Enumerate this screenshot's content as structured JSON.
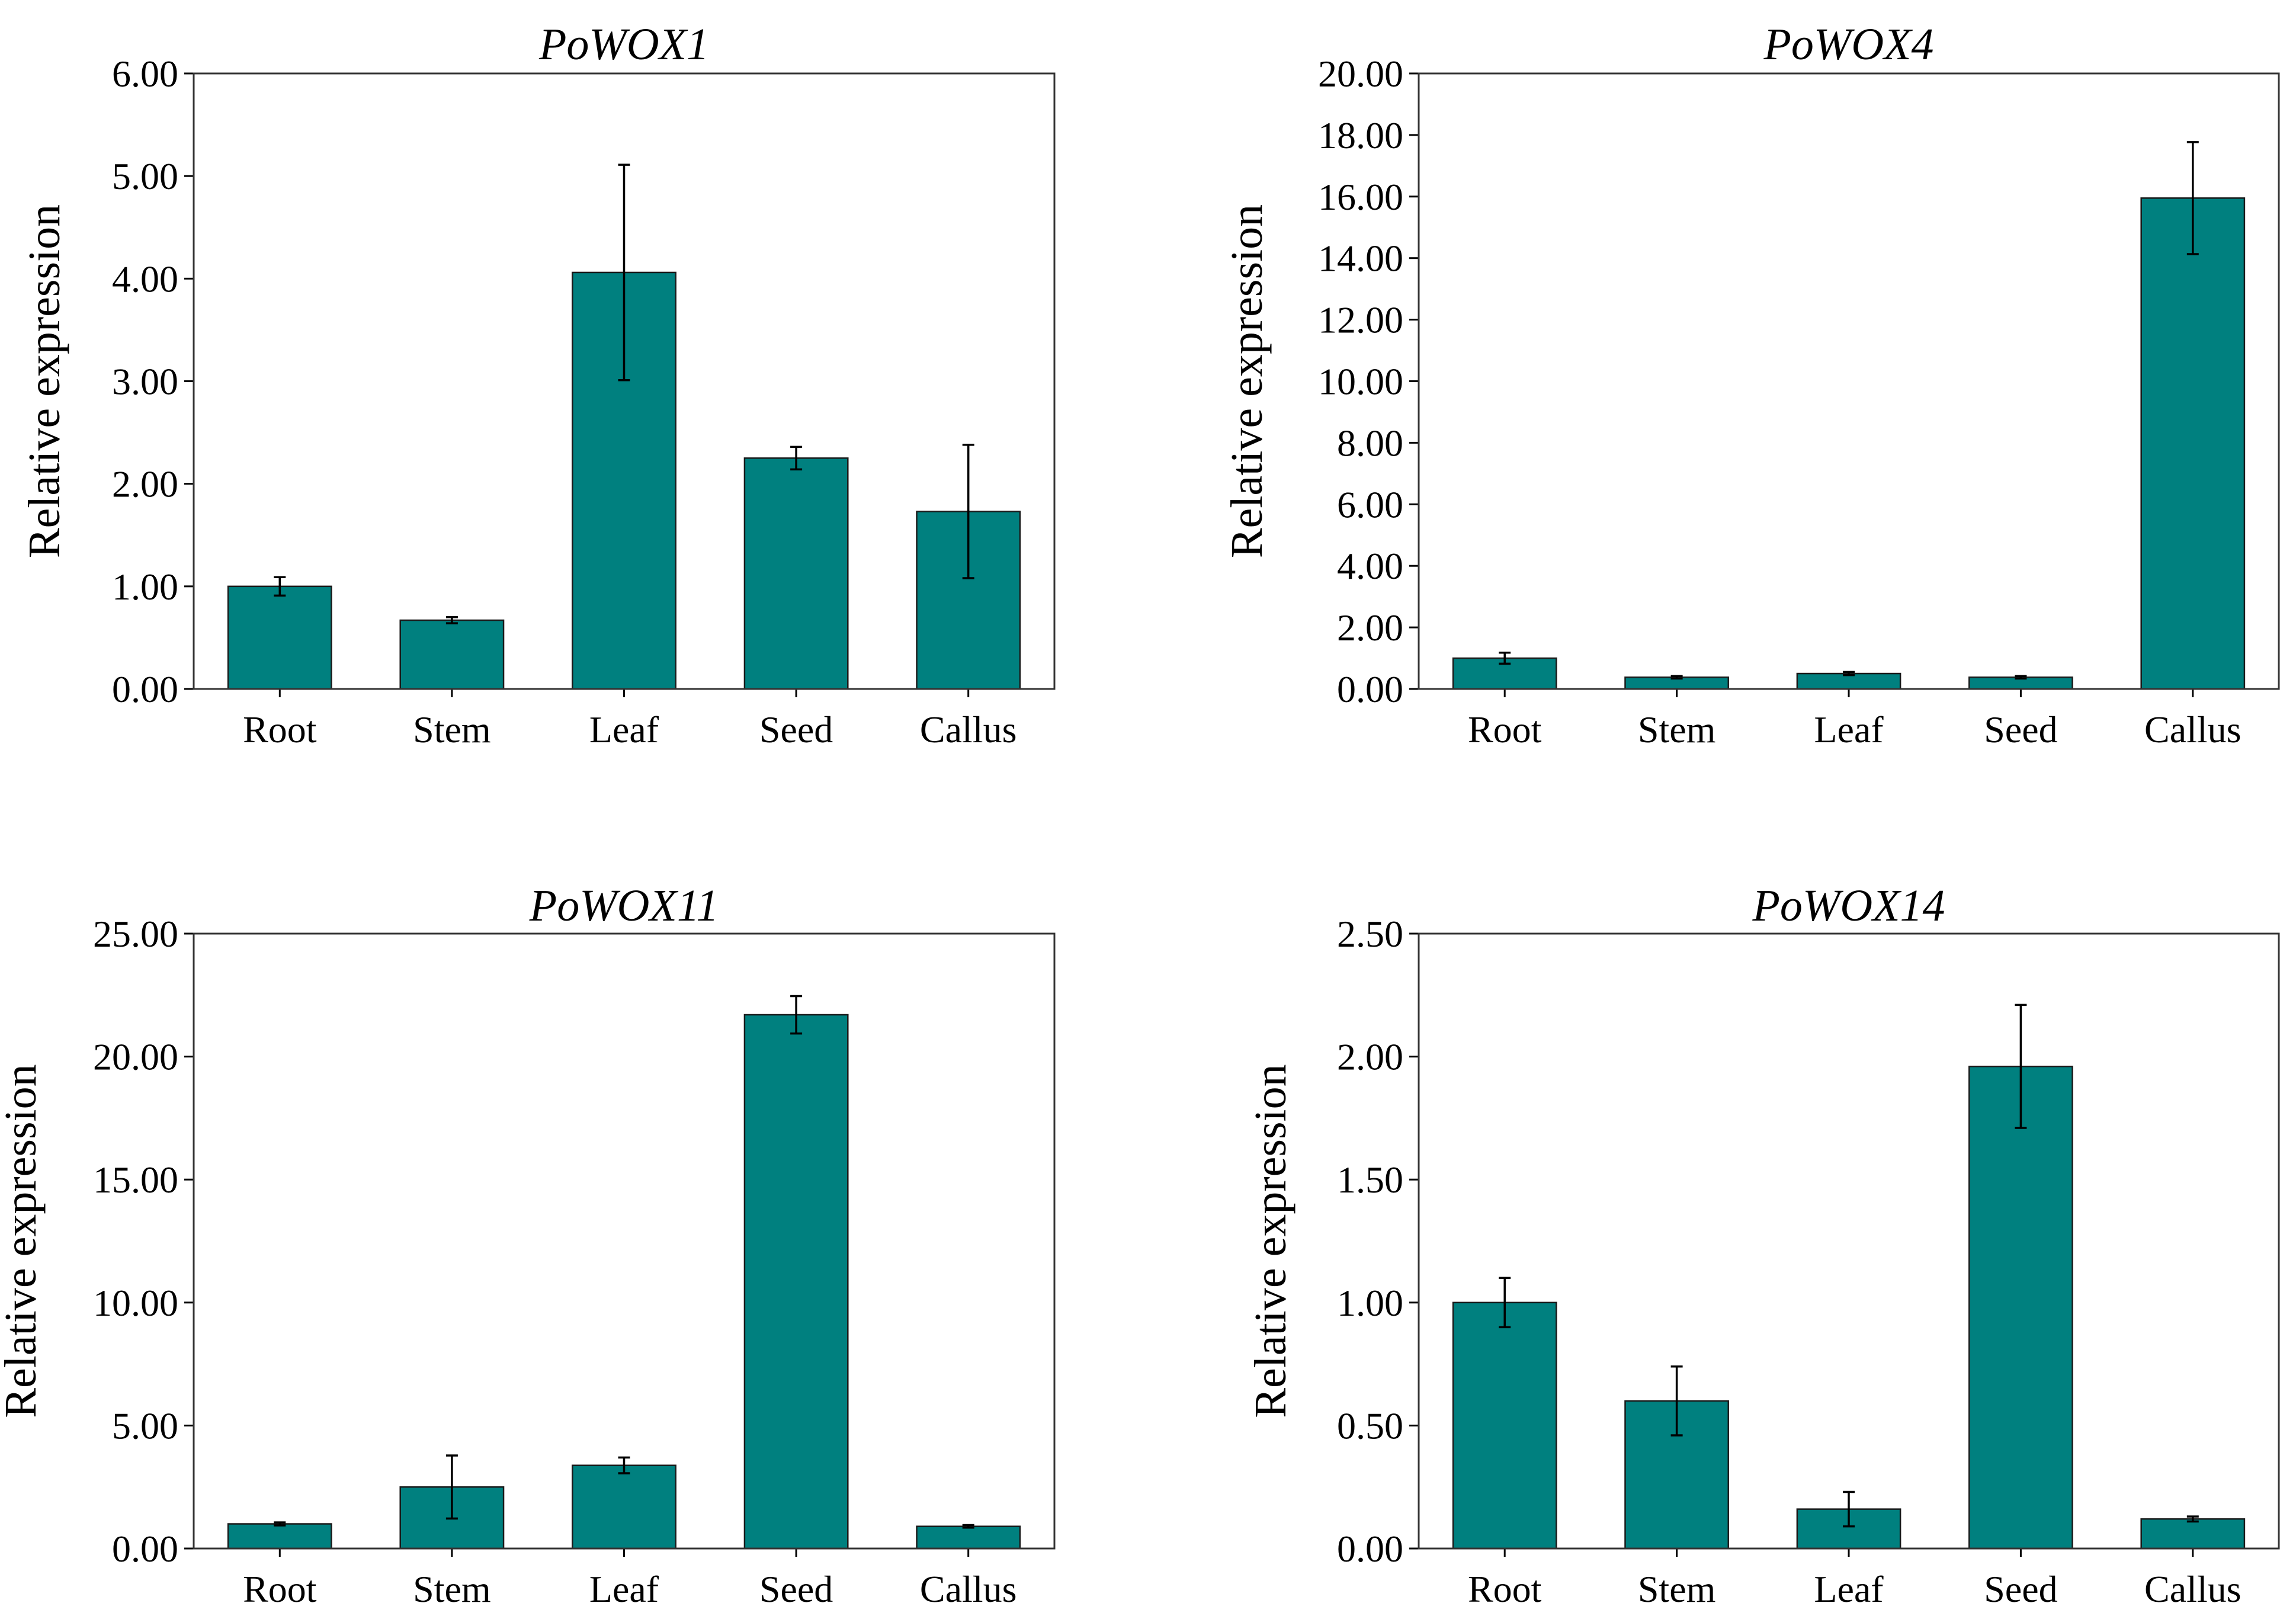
{
  "figure": {
    "bar_color": "#00807f",
    "bar_edge_color": "#1a1a1a",
    "error_bar_color": "#000000"
  },
  "chart_data": [
    {
      "type": "bar",
      "title": "PoWOX1",
      "xlabel": "",
      "ylabel": "Relative expression",
      "categories": [
        "Root",
        "Stem",
        "Leaf",
        "Seed",
        "Callus"
      ],
      "values": [
        1.0,
        0.67,
        4.06,
        2.25,
        1.73
      ],
      "errors": [
        0.09,
        0.03,
        1.05,
        0.11,
        0.65
      ],
      "ylim": [
        0,
        6
      ],
      "yticks": [
        "0.00",
        "1.00",
        "2.00",
        "3.00",
        "4.00",
        "5.00",
        "6.00"
      ],
      "yticks_values": [
        0,
        1,
        2,
        3,
        4,
        5,
        6
      ],
      "grid": false,
      "legend": "none"
    },
    {
      "type": "bar",
      "title": "PoWOX4",
      "xlabel": "",
      "ylabel": "Relative expression",
      "categories": [
        "Root",
        "Stem",
        "Leaf",
        "Seed",
        "Callus"
      ],
      "values": [
        1.0,
        0.38,
        0.5,
        0.38,
        15.95
      ],
      "errors": [
        0.18,
        0.04,
        0.05,
        0.04,
        1.82
      ],
      "ylim": [
        0,
        20
      ],
      "yticks": [
        "0.00",
        "2.00",
        "4.00",
        "6.00",
        "8.00",
        "10.00",
        "12.00",
        "14.00",
        "16.00",
        "18.00",
        "20.00"
      ],
      "yticks_values": [
        0,
        2,
        4,
        6,
        8,
        10,
        12,
        14,
        16,
        18,
        20
      ],
      "grid": false,
      "legend": "none"
    },
    {
      "type": "bar",
      "title": "PoWOX11",
      "xlabel": "",
      "ylabel": "Relative expression",
      "categories": [
        "Root",
        "Stem",
        "Leaf",
        "Seed",
        "Callus"
      ],
      "values": [
        1.0,
        2.5,
        3.38,
        21.7,
        0.9
      ],
      "errors": [
        0.06,
        1.28,
        0.32,
        0.76,
        0.05
      ],
      "ylim": [
        0,
        25
      ],
      "yticks": [
        "0.00",
        "5.00",
        "10.00",
        "15.00",
        "20.00",
        "25.00"
      ],
      "yticks_values": [
        0,
        5,
        10,
        15,
        20,
        25
      ],
      "grid": false,
      "legend": "none"
    },
    {
      "type": "bar",
      "title": "PoWOX14",
      "xlabel": "",
      "ylabel": "Relative expression",
      "categories": [
        "Root",
        "Stem",
        "Leaf",
        "Seed",
        "Callus"
      ],
      "values": [
        1.0,
        0.6,
        0.16,
        1.96,
        0.12
      ],
      "errors": [
        0.1,
        0.14,
        0.07,
        0.25,
        0.01
      ],
      "ylim": [
        0,
        2.5
      ],
      "yticks": [
        "0.00",
        "0.50",
        "1.00",
        "1.50",
        "2.00",
        "2.50"
      ],
      "yticks_values": [
        0,
        0.5,
        1,
        1.5,
        2,
        2.5
      ],
      "grid": false,
      "legend": "none"
    }
  ]
}
